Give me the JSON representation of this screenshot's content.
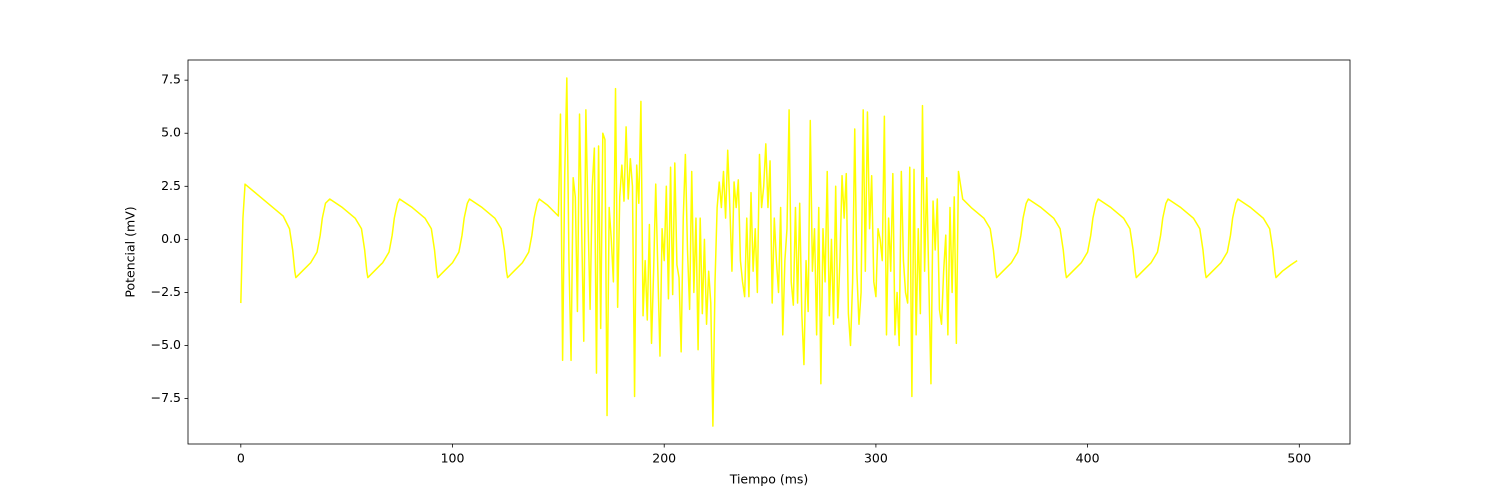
{
  "chart_data": {
    "type": "line",
    "xlabel": "Tiempo (ms)",
    "ylabel": "Potencial (mV)",
    "color": "#ffff00",
    "xlim": [
      -24.95,
      523.95
    ],
    "ylim": [
      -9.64,
      8.45
    ],
    "xticks": [
      0,
      100,
      200,
      300,
      400,
      500
    ],
    "yticks": [
      {
        "value": -7.5,
        "label": "−7.5"
      },
      {
        "value": -5,
        "label": "−5.0"
      },
      {
        "value": -2.5,
        "label": "−2.5"
      },
      {
        "value": 0,
        "label": "0.0"
      },
      2.5,
      {
        "value": 5,
        "label": "5.0"
      },
      7.5
    ],
    "x": [
      0,
      1,
      2,
      8,
      14,
      20,
      23,
      24.5,
      25.5,
      26,
      29,
      33,
      36,
      37.5,
      38.5,
      40,
      42,
      48,
      54,
      57,
      58.5,
      59.5,
      60,
      63,
      67,
      70,
      71.5,
      72.5,
      74,
      75,
      81,
      87,
      90,
      91.5,
      92.5,
      93,
      96,
      100,
      103,
      104.5,
      105.5,
      107,
      108,
      114,
      120,
      123,
      124.5,
      125.5,
      126,
      129,
      133,
      136,
      137.5,
      138.5,
      140,
      141,
      145,
      149,
      150,
      151,
      152,
      153,
      154,
      155,
      156,
      157,
      158,
      159,
      160,
      161,
      162,
      163,
      164,
      165,
      166,
      167,
      168,
      169,
      170,
      171,
      172,
      173,
      174,
      175,
      176,
      177,
      178,
      179,
      180,
      181,
      182,
      183,
      184,
      185,
      186,
      187,
      188,
      189,
      190,
      191,
      192,
      193,
      194,
      195,
      196,
      197,
      198,
      199,
      200,
      201,
      202,
      203,
      204,
      205,
      206,
      207,
      208,
      209,
      210,
      211,
      212,
      213,
      214,
      215,
      216,
      217,
      218,
      219,
      220,
      221,
      222,
      223,
      224,
      225,
      226,
      227,
      228,
      229,
      230,
      231,
      232,
      233,
      234,
      235,
      236,
      237,
      238,
      239,
      240,
      241,
      242,
      243,
      244,
      245,
      246,
      247,
      248,
      249,
      250,
      251,
      252,
      253,
      254,
      255,
      256,
      257,
      258,
      259,
      260,
      261,
      262,
      263,
      264,
      265,
      266,
      267,
      268,
      269,
      270,
      271,
      272,
      273,
      274,
      275,
      276,
      277,
      278,
      279,
      280,
      281,
      282,
      283,
      284,
      285,
      286,
      287,
      288,
      289,
      290,
      291,
      292,
      293,
      294,
      295,
      296,
      297,
      298,
      299,
      300,
      301,
      302,
      303,
      304,
      305,
      306,
      307,
      308,
      309,
      310,
      311,
      312,
      313,
      314,
      315,
      316,
      317,
      318,
      319,
      320,
      321,
      322,
      323,
      324,
      325,
      326,
      327,
      328,
      329,
      330,
      331,
      332,
      333,
      334,
      335,
      336,
      337,
      338,
      339,
      341,
      345,
      351,
      354,
      355.5,
      356.5,
      357,
      360,
      364,
      367,
      368.5,
      369.5,
      371,
      372,
      378,
      384,
      387,
      388.5,
      389.5,
      390,
      393,
      397,
      400,
      401.5,
      402.5,
      404,
      405,
      411,
      417,
      420,
      421.5,
      422.5,
      423,
      426,
      430,
      433,
      434.5,
      435.5,
      437,
      438,
      444,
      450,
      453,
      454.5,
      455.5,
      456,
      459,
      463,
      466,
      467.5,
      468.5,
      470,
      471,
      477,
      483,
      486,
      487.5,
      488.5,
      489,
      492,
      496,
      499
    ],
    "values": [
      -3.0,
      1.0,
      2.6,
      2.1,
      1.6,
      1.1,
      0.5,
      -0.5,
      -1.5,
      -1.8,
      -1.5,
      -1.1,
      -0.6,
      0.2,
      1.0,
      1.7,
      1.9,
      1.5,
      1.0,
      0.5,
      -0.5,
      -1.5,
      -1.8,
      -1.5,
      -1.1,
      -0.6,
      0.2,
      1.0,
      1.7,
      1.9,
      1.5,
      1.0,
      0.5,
      -0.5,
      -1.5,
      -1.8,
      -1.5,
      -1.1,
      -0.6,
      0.2,
      1.0,
      1.7,
      1.9,
      1.5,
      1.0,
      0.5,
      -0.5,
      -1.5,
      -1.8,
      -1.5,
      -1.1,
      -0.6,
      0.2,
      1.0,
      1.7,
      1.9,
      1.6,
      1.2,
      1.1,
      5.9,
      -5.7,
      3.0,
      7.6,
      -1.0,
      -5.7,
      2.9,
      2.0,
      -3.4,
      5.9,
      0.5,
      -4.8,
      6.1,
      1.0,
      -3.3,
      2.5,
      4.3,
      -6.3,
      4.4,
      -4.2,
      5.0,
      4.7,
      -8.3,
      1.5,
      0.0,
      -2.0,
      7.1,
      -3.2,
      2.0,
      3.5,
      1.8,
      5.3,
      1.9,
      3.8,
      2.5,
      -7.4,
      3.5,
      1.7,
      6.5,
      -3.6,
      -1.0,
      -3.8,
      0.7,
      -4.9,
      -1.5,
      2.6,
      -1.5,
      -5.5,
      0.5,
      -1.0,
      2.5,
      -2.8,
      3.4,
      -2.6,
      3.6,
      -1.2,
      -1.8,
      -5.3,
      1.0,
      4.0,
      -0.5,
      -3.3,
      3.2,
      -2.5,
      1.0,
      -5.2,
      1.0,
      -3.5,
      0.0,
      -4.0,
      -1.5,
      -3.0,
      -8.8,
      -2.0,
      1.5,
      2.7,
      1.5,
      3.2,
      1.0,
      4.2,
      1.5,
      -1.5,
      2.7,
      1.5,
      2.8,
      -1.0,
      -2.0,
      -2.7,
      1.0,
      -2.7,
      2.2,
      -1.5,
      0.5,
      -2.5,
      4.0,
      1.5,
      2.5,
      4.5,
      1.5,
      3.7,
      -3.0,
      1.0,
      -1.0,
      -2.5,
      1.5,
      -4.5,
      -1.0,
      0.5,
      6.1,
      -2.0,
      -3.1,
      1.5,
      -3.0,
      1.7,
      -3.5,
      -5.9,
      -1.0,
      -3.4,
      5.6,
      -1.5,
      0.5,
      -4.5,
      1.5,
      -6.8,
      0.5,
      -2.0,
      3.2,
      -3.6,
      0.0,
      -4.0,
      2.5,
      -3.7,
      -1.0,
      3.0,
      1.0,
      3.1,
      -3.5,
      -5.0,
      -2.0,
      5.2,
      -1.5,
      -4.0,
      -2.5,
      6.1,
      -1.5,
      6.0,
      0.5,
      3.0,
      -2.0,
      -2.7,
      0.5,
      0.0,
      -1.0,
      5.8,
      -4.5,
      1.0,
      -1.5,
      3.1,
      -4.5,
      -2.5,
      -5.0,
      3.2,
      -1.0,
      -2.5,
      -3.0,
      3.4,
      -7.4,
      3.3,
      -4.5,
      0.5,
      -3.5,
      6.3,
      -1.5,
      2.9,
      -2.0,
      -6.8,
      1.8,
      -0.5,
      1.9,
      -3.3,
      -4.0,
      -1.5,
      0.2,
      -4.5,
      1.5,
      -2.5,
      2.0,
      -4.9,
      3.2,
      1.9,
      1.5,
      1.0,
      0.5,
      -0.5,
      -1.5,
      -1.8,
      -1.5,
      -1.1,
      -0.6,
      0.2,
      1.0,
      1.7,
      1.9,
      1.5,
      1.0,
      0.5,
      -0.5,
      -1.5,
      -1.8,
      -1.5,
      -1.1,
      -0.6,
      0.2,
      1.0,
      1.7,
      1.9,
      1.5,
      1.0,
      0.5,
      -0.5,
      -1.5,
      -1.8,
      -1.5,
      -1.1,
      -0.6,
      0.2,
      1.0,
      1.7,
      1.9,
      1.5,
      1.0,
      0.5,
      -0.5,
      -1.5,
      -1.8,
      -1.5,
      -1.1,
      -0.6,
      0.2,
      1.0,
      1.7,
      1.9,
      1.5,
      1.0,
      0.5,
      -0.5,
      -1.5,
      -1.8,
      -1.5,
      -1.2,
      -1.0
    ]
  }
}
